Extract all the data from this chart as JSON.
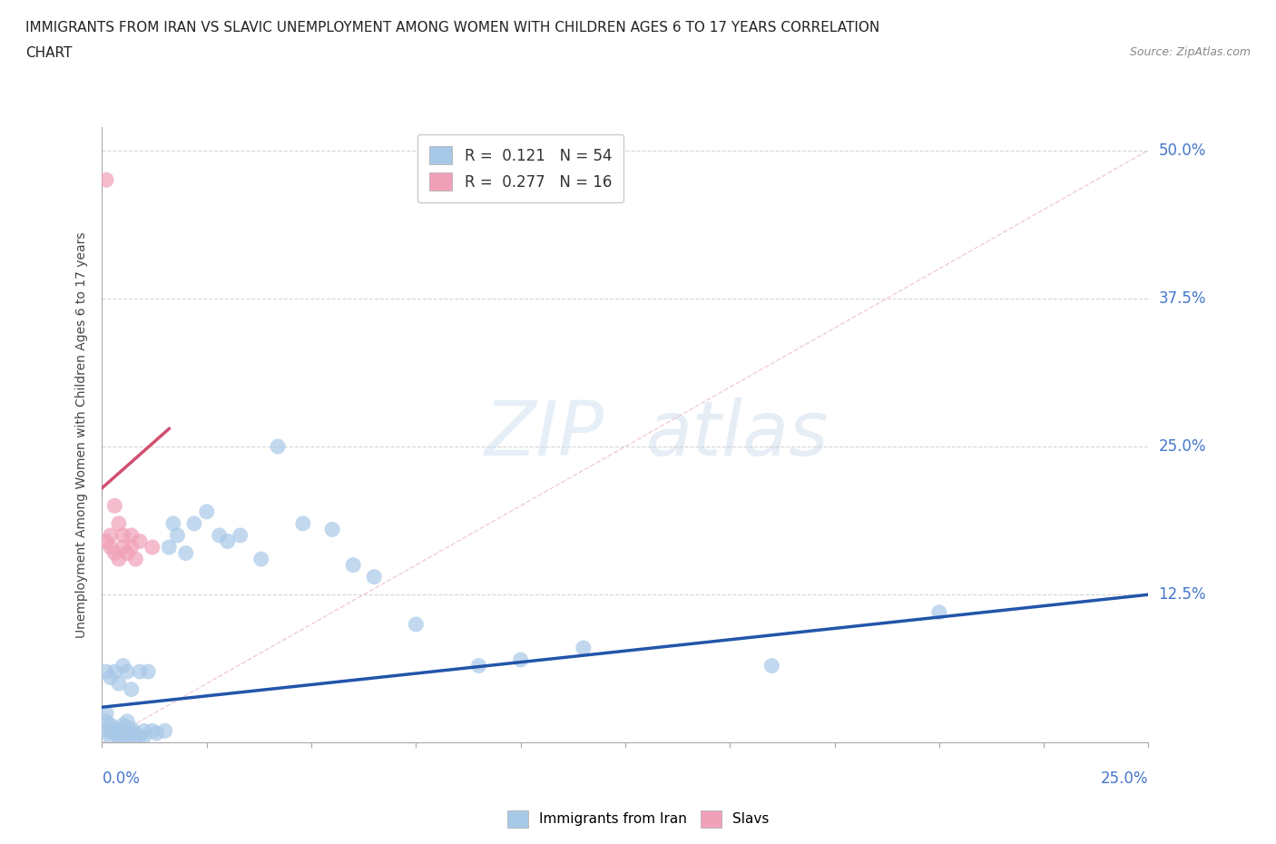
{
  "title_line1": "IMMIGRANTS FROM IRAN VS SLAVIC UNEMPLOYMENT AMONG WOMEN WITH CHILDREN AGES 6 TO 17 YEARS CORRELATION",
  "title_line2": "CHART",
  "source": "Source: ZipAtlas.com",
  "ylabel": "Unemployment Among Women with Children Ages 6 to 17 years",
  "xlim": [
    0.0,
    0.25
  ],
  "ylim": [
    0.0,
    0.52
  ],
  "grid_color": "#cccccc",
  "background_color": "#ffffff",
  "iran_color": "#a8c8e8",
  "iran_line_color": "#2255aa",
  "slavic_color": "#f0a0b8",
  "slavic_line_color": "#d05070",
  "diag_color": "#e8b8c8",
  "legend_iran_R": "0.121",
  "legend_iran_N": "54",
  "legend_slavic_R": "0.277",
  "legend_slavic_N": "16",
  "iran_x": [
    0.001,
    0.001,
    0.001,
    0.001,
    0.002,
    0.002,
    0.002,
    0.002,
    0.003,
    0.003,
    0.003,
    0.004,
    0.004,
    0.004,
    0.005,
    0.005,
    0.005,
    0.006,
    0.006,
    0.006,
    0.007,
    0.007,
    0.007,
    0.008,
    0.008,
    0.009,
    0.009,
    0.01,
    0.01,
    0.011,
    0.012,
    0.013,
    0.015,
    0.016,
    0.017,
    0.018,
    0.02,
    0.022,
    0.025,
    0.028,
    0.03,
    0.033,
    0.038,
    0.042,
    0.048,
    0.055,
    0.06,
    0.065,
    0.075,
    0.09,
    0.1,
    0.115,
    0.16,
    0.2
  ],
  "iran_y": [
    0.01,
    0.018,
    0.025,
    0.06,
    0.005,
    0.01,
    0.015,
    0.055,
    0.008,
    0.012,
    0.06,
    0.005,
    0.01,
    0.05,
    0.005,
    0.015,
    0.065,
    0.005,
    0.018,
    0.06,
    0.008,
    0.012,
    0.045,
    0.005,
    0.008,
    0.005,
    0.06,
    0.005,
    0.01,
    0.06,
    0.01,
    0.008,
    0.01,
    0.165,
    0.185,
    0.175,
    0.16,
    0.185,
    0.195,
    0.175,
    0.17,
    0.175,
    0.155,
    0.25,
    0.185,
    0.18,
    0.15,
    0.14,
    0.1,
    0.065,
    0.07,
    0.08,
    0.065,
    0.11
  ],
  "slavic_x": [
    0.001,
    0.001,
    0.002,
    0.002,
    0.003,
    0.003,
    0.004,
    0.004,
    0.005,
    0.005,
    0.006,
    0.007,
    0.007,
    0.008,
    0.009,
    0.012
  ],
  "slavic_y": [
    0.475,
    0.17,
    0.175,
    0.165,
    0.2,
    0.16,
    0.185,
    0.155,
    0.175,
    0.165,
    0.16,
    0.165,
    0.175,
    0.155,
    0.17,
    0.165
  ],
  "iran_trend_x0": 0.0,
  "iran_trend_x1": 0.25,
  "iran_trend_y0": 0.03,
  "iran_trend_y1": 0.125,
  "slavic_trend_x0": 0.0,
  "slavic_trend_x1": 0.016,
  "slavic_trend_y0": 0.215,
  "slavic_trend_y1": 0.265
}
